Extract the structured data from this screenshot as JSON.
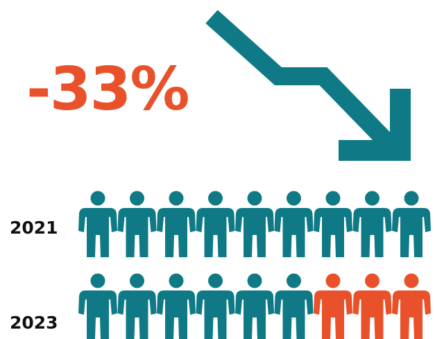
{
  "headline": {
    "text": "-33%",
    "color": "#E8512A"
  },
  "trend": {
    "icon": "down-trend-arrow-icon",
    "color": "#0F7A86"
  },
  "rows": [
    {
      "label": "2021",
      "total": 9,
      "highlighted": 0
    },
    {
      "label": "2023",
      "total": 9,
      "highlighted": 3
    }
  ],
  "colors": {
    "person": "#0F7A86",
    "highlight": "#E8512A",
    "label": "#111111"
  },
  "icons": {
    "person": "person-icon"
  }
}
